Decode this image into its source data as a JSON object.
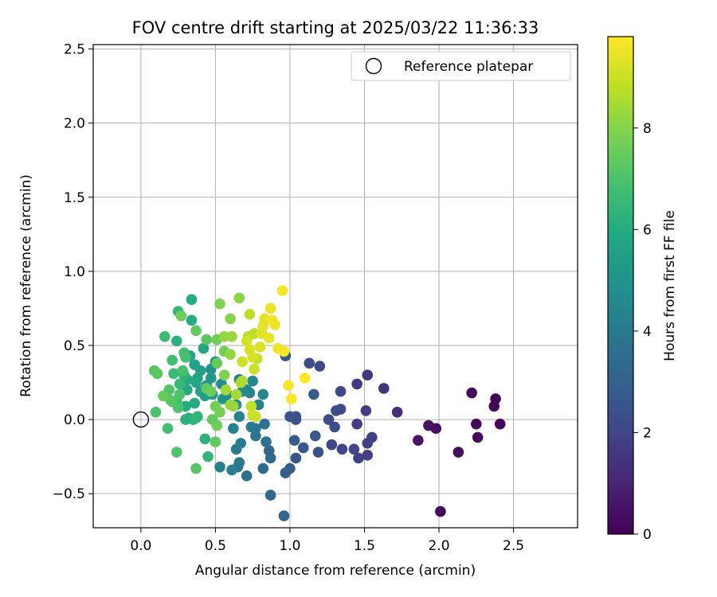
{
  "chart_data": {
    "type": "scatter",
    "title": "FOV centre drift starting at 2025/03/22 11:36:33",
    "xlabel": "Angular distance from reference (arcmin)",
    "ylabel": "Rotation from reference (arcmin)",
    "xlim": [
      -0.32,
      2.93
    ],
    "ylim": [
      -0.73,
      2.53
    ],
    "xticks": [
      0.0,
      0.5,
      1.0,
      1.5,
      2.0,
      2.5
    ],
    "xtick_labels": [
      "0.0",
      "0.5",
      "1.0",
      "1.5",
      "2.0",
      "2.5"
    ],
    "yticks": [
      -0.5,
      0.0,
      0.5,
      1.0,
      1.5,
      2.0,
      2.5
    ],
    "ytick_labels": [
      "−0.5",
      "0.0",
      "0.5",
      "1.0",
      "1.5",
      "2.0",
      "2.5"
    ],
    "grid": true,
    "legend": {
      "placement": "top-right",
      "entries": [
        {
          "label": "Reference platepar",
          "marker": "open-circle"
        }
      ]
    },
    "reference_point": {
      "x": 0.0,
      "y": 0.0
    },
    "colorbar": {
      "label": "Hours from first FF file",
      "colormap": "viridis",
      "min": 0,
      "max": 9.8,
      "ticks": [
        0,
        2,
        4,
        6,
        8
      ],
      "tick_labels": [
        "0",
        "2",
        "4",
        "6",
        "8"
      ]
    },
    "series": [
      {
        "points": [
          {
            "x": 2.01,
            "y": -0.62,
            "c": 0.2
          },
          {
            "x": 2.13,
            "y": -0.22,
            "c": 0.3
          },
          {
            "x": 1.86,
            "y": -0.14,
            "c": 0.5
          },
          {
            "x": 1.93,
            "y": -0.04,
            "c": 0.5
          },
          {
            "x": 1.98,
            "y": -0.06,
            "c": 0.4
          },
          {
            "x": 2.22,
            "y": 0.18,
            "c": 0.3
          },
          {
            "x": 2.25,
            "y": -0.03,
            "c": 0.2
          },
          {
            "x": 2.26,
            "y": -0.12,
            "c": 0.2
          },
          {
            "x": 2.38,
            "y": 0.14,
            "c": 0.1
          },
          {
            "x": 2.37,
            "y": 0.09,
            "c": 0.1
          },
          {
            "x": 2.41,
            "y": -0.03,
            "c": 0.1
          },
          {
            "x": 1.72,
            "y": 0.05,
            "c": 1.3
          },
          {
            "x": 1.63,
            "y": 0.21,
            "c": 1.5
          },
          {
            "x": 1.52,
            "y": 0.3,
            "c": 1.6
          },
          {
            "x": 1.45,
            "y": 0.24,
            "c": 1.6
          },
          {
            "x": 1.51,
            "y": 0.06,
            "c": 1.7
          },
          {
            "x": 1.45,
            "y": -0.03,
            "c": 1.8
          },
          {
            "x": 1.55,
            "y": -0.12,
            "c": 1.8
          },
          {
            "x": 1.52,
            "y": -0.16,
            "c": 1.9
          },
          {
            "x": 1.52,
            "y": -0.24,
            "c": 1.8
          },
          {
            "x": 1.46,
            "y": -0.26,
            "c": 1.9
          },
          {
            "x": 1.43,
            "y": -0.2,
            "c": 2.0
          },
          {
            "x": 1.35,
            "y": -0.2,
            "c": 2.0
          },
          {
            "x": 1.28,
            "y": -0.17,
            "c": 2.1
          },
          {
            "x": 1.34,
            "y": 0.19,
            "c": 2.1
          },
          {
            "x": 1.34,
            "y": 0.07,
            "c": 2.2
          },
          {
            "x": 1.31,
            "y": 0.06,
            "c": 2.2
          },
          {
            "x": 1.26,
            "y": 0.0,
            "c": 2.3
          },
          {
            "x": 1.3,
            "y": -0.05,
            "c": 2.3
          },
          {
            "x": 1.2,
            "y": 0.36,
            "c": 2.2
          },
          {
            "x": 1.13,
            "y": 0.38,
            "c": 2.3
          },
          {
            "x": 1.16,
            "y": 0.17,
            "c": 2.8
          },
          {
            "x": 1.17,
            "y": -0.11,
            "c": 2.7
          },
          {
            "x": 1.19,
            "y": -0.22,
            "c": 2.5
          },
          {
            "x": 1.09,
            "y": -0.19,
            "c": 2.6
          },
          {
            "x": 1.04,
            "y": -0.26,
            "c": 2.6
          },
          {
            "x": 1.04,
            "y": 0.02,
            "c": 2.4
          },
          {
            "x": 1.04,
            "y": 0.0,
            "c": 2.5
          },
          {
            "x": 1.0,
            "y": 0.02,
            "c": 2.6
          },
          {
            "x": 1.03,
            "y": -0.14,
            "c": 2.8
          },
          {
            "x": 1.0,
            "y": -0.33,
            "c": 2.9
          },
          {
            "x": 0.97,
            "y": -0.36,
            "c": 2.9
          },
          {
            "x": 0.97,
            "y": 0.43,
            "c": 2.6
          },
          {
            "x": 0.96,
            "y": -0.65,
            "c": 3.2
          },
          {
            "x": 0.87,
            "y": -0.51,
            "c": 3.3
          },
          {
            "x": 0.87,
            "y": -0.26,
            "c": 3.5
          },
          {
            "x": 0.86,
            "y": -0.21,
            "c": 3.3
          },
          {
            "x": 0.82,
            "y": -0.33,
            "c": 3.4
          },
          {
            "x": 0.84,
            "y": -0.15,
            "c": 3.6
          },
          {
            "x": 0.83,
            "y": -0.03,
            "c": 3.7
          },
          {
            "x": 0.77,
            "y": -0.06,
            "c": 3.8
          },
          {
            "x": 0.77,
            "y": -0.11,
            "c": 3.8
          },
          {
            "x": 0.74,
            "y": -0.05,
            "c": 4.0
          },
          {
            "x": 0.71,
            "y": -0.38,
            "c": 3.7
          },
          {
            "x": 0.66,
            "y": -0.29,
            "c": 3.8
          },
          {
            "x": 0.65,
            "y": -0.32,
            "c": 3.9
          },
          {
            "x": 0.64,
            "y": -0.2,
            "c": 4.0
          },
          {
            "x": 0.67,
            "y": -0.16,
            "c": 4.1
          },
          {
            "x": 0.61,
            "y": -0.34,
            "c": 4.1
          },
          {
            "x": 0.53,
            "y": -0.32,
            "c": 4.2
          },
          {
            "x": 0.62,
            "y": -0.06,
            "c": 4.2
          },
          {
            "x": 0.66,
            "y": 0.02,
            "c": 4.3
          },
          {
            "x": 0.66,
            "y": 0.27,
            "c": 4.2
          },
          {
            "x": 0.73,
            "y": 0.18,
            "c": 4.3
          },
          {
            "x": 0.79,
            "y": 0.1,
            "c": 4.4
          },
          {
            "x": 0.82,
            "y": 0.17,
            "c": 4.5
          },
          {
            "x": 0.75,
            "y": 0.26,
            "c": 4.6
          },
          {
            "x": 0.71,
            "y": 0.2,
            "c": 4.5
          },
          {
            "x": 0.68,
            "y": 0.19,
            "c": 4.6
          },
          {
            "x": 0.64,
            "y": 0.1,
            "c": 4.7
          },
          {
            "x": 0.58,
            "y": 0.17,
            "c": 4.8
          },
          {
            "x": 0.54,
            "y": 0.24,
            "c": 4.8
          },
          {
            "x": 0.55,
            "y": 0.14,
            "c": 4.9
          },
          {
            "x": 0.5,
            "y": 0.39,
            "c": 5.0
          },
          {
            "x": 0.47,
            "y": 0.34,
            "c": 5.0
          },
          {
            "x": 0.47,
            "y": 0.28,
            "c": 5.2
          },
          {
            "x": 0.44,
            "y": 0.23,
            "c": 5.2
          },
          {
            "x": 0.48,
            "y": 0.17,
            "c": 5.3
          },
          {
            "x": 0.43,
            "y": 0.16,
            "c": 5.4
          },
          {
            "x": 0.4,
            "y": 0.19,
            "c": 5.5
          },
          {
            "x": 0.38,
            "y": 0.28,
            "c": 5.6
          },
          {
            "x": 0.4,
            "y": 0.33,
            "c": 5.6
          },
          {
            "x": 0.36,
            "y": 0.37,
            "c": 5.6
          },
          {
            "x": 0.42,
            "y": 0.48,
            "c": 5.7
          },
          {
            "x": 0.33,
            "y": 0.43,
            "c": 5.8
          },
          {
            "x": 0.37,
            "y": 0.25,
            "c": 5.8
          },
          {
            "x": 0.31,
            "y": 0.27,
            "c": 5.9
          },
          {
            "x": 0.31,
            "y": 0.2,
            "c": 5.9
          },
          {
            "x": 0.36,
            "y": 0.11,
            "c": 6.0
          },
          {
            "x": 0.3,
            "y": 0.09,
            "c": 6.0
          },
          {
            "x": 0.32,
            "y": 0.01,
            "c": 6.1
          },
          {
            "x": 0.3,
            "y": 0.0,
            "c": 6.2
          },
          {
            "x": 0.35,
            "y": 0.0,
            "c": 6.2
          },
          {
            "x": 0.37,
            "y": 0.01,
            "c": 6.3
          },
          {
            "x": 0.38,
            "y": 0.02,
            "c": 6.4
          },
          {
            "x": 0.43,
            "y": -0.13,
            "c": 6.2
          },
          {
            "x": 0.45,
            "y": -0.25,
            "c": 6.4
          },
          {
            "x": 0.24,
            "y": 0.53,
            "c": 6.2
          },
          {
            "x": 0.34,
            "y": 0.67,
            "c": 6.0
          },
          {
            "x": 0.34,
            "y": 0.81,
            "c": 6.0
          },
          {
            "x": 0.25,
            "y": 0.73,
            "c": 6.5
          },
          {
            "x": 0.29,
            "y": 0.3,
            "c": 6.3
          },
          {
            "x": 0.26,
            "y": 0.24,
            "c": 6.5
          },
          {
            "x": 0.24,
            "y": 0.13,
            "c": 6.6
          },
          {
            "x": 0.22,
            "y": 0.31,
            "c": 6.6
          },
          {
            "x": 0.21,
            "y": 0.4,
            "c": 6.8
          },
          {
            "x": 0.16,
            "y": 0.56,
            "c": 6.7
          },
          {
            "x": 0.29,
            "y": 0.45,
            "c": 6.8
          },
          {
            "x": 0.3,
            "y": 0.42,
            "c": 6.9
          },
          {
            "x": 0.28,
            "y": 0.33,
            "c": 6.9
          },
          {
            "x": 0.26,
            "y": 0.17,
            "c": 7.0
          },
          {
            "x": 0.25,
            "y": 0.08,
            "c": 7.0
          },
          {
            "x": 0.19,
            "y": 0.2,
            "c": 7.1
          },
          {
            "x": 0.2,
            "y": 0.13,
            "c": 7.1
          },
          {
            "x": 0.21,
            "y": 0.12,
            "c": 7.2
          },
          {
            "x": 0.18,
            "y": -0.06,
            "c": 6.8
          },
          {
            "x": 0.24,
            "y": -0.22,
            "c": 7.1
          },
          {
            "x": 0.37,
            "y": -0.33,
            "c": 7.2
          },
          {
            "x": 0.1,
            "y": 0.05,
            "c": 7.0
          },
          {
            "x": 0.09,
            "y": 0.33,
            "c": 7.2
          },
          {
            "x": 0.11,
            "y": 0.31,
            "c": 7.3
          },
          {
            "x": 0.15,
            "y": 0.16,
            "c": 7.5
          },
          {
            "x": 0.27,
            "y": 0.7,
            "c": 7.6
          },
          {
            "x": 0.37,
            "y": 0.6,
            "c": 7.4
          },
          {
            "x": 0.44,
            "y": 0.54,
            "c": 7.3
          },
          {
            "x": 0.51,
            "y": 0.54,
            "c": 7.6
          },
          {
            "x": 0.56,
            "y": 0.46,
            "c": 7.7
          },
          {
            "x": 0.51,
            "y": 0.38,
            "c": 7.5
          },
          {
            "x": 0.44,
            "y": 0.21,
            "c": 7.4
          },
          {
            "x": 0.47,
            "y": 0.19,
            "c": 7.6
          },
          {
            "x": 0.48,
            "y": 0.0,
            "c": 7.4
          },
          {
            "x": 0.51,
            "y": -0.04,
            "c": 7.6
          },
          {
            "x": 0.5,
            "y": -0.15,
            "c": 7.4
          },
          {
            "x": 0.5,
            "y": 0.09,
            "c": 7.7
          },
          {
            "x": 0.53,
            "y": 0.05,
            "c": 7.8
          },
          {
            "x": 0.56,
            "y": 0.3,
            "c": 7.9
          },
          {
            "x": 0.53,
            "y": 0.78,
            "c": 7.9
          },
          {
            "x": 0.6,
            "y": 0.68,
            "c": 8.0
          },
          {
            "x": 0.66,
            "y": 0.82,
            "c": 8.1
          },
          {
            "x": 0.56,
            "y": 0.56,
            "c": 8.2
          },
          {
            "x": 0.61,
            "y": 0.56,
            "c": 8.3
          },
          {
            "x": 0.6,
            "y": 0.44,
            "c": 8.2
          },
          {
            "x": 0.6,
            "y": 0.1,
            "c": 8.2
          },
          {
            "x": 0.62,
            "y": 0.09,
            "c": 8.3
          },
          {
            "x": 0.57,
            "y": 0.2,
            "c": 8.4
          },
          {
            "x": 0.64,
            "y": 0.17,
            "c": 8.5
          },
          {
            "x": 0.67,
            "y": 0.25,
            "c": 8.6
          },
          {
            "x": 0.68,
            "y": 0.26,
            "c": 8.6
          },
          {
            "x": 0.72,
            "y": 0.56,
            "c": 8.7
          },
          {
            "x": 0.73,
            "y": 0.71,
            "c": 8.8
          },
          {
            "x": 0.76,
            "y": 0.58,
            "c": 8.8
          },
          {
            "x": 0.78,
            "y": 0.41,
            "c": 8.9
          },
          {
            "x": 0.76,
            "y": 0.34,
            "c": 9.0
          },
          {
            "x": 0.74,
            "y": 0.09,
            "c": 8.9
          },
          {
            "x": 0.75,
            "y": 0.03,
            "c": 9.0
          },
          {
            "x": 0.77,
            "y": 0.02,
            "c": 9.0
          },
          {
            "x": 0.68,
            "y": 0.39,
            "c": 9.1
          },
          {
            "x": 0.71,
            "y": 0.53,
            "c": 9.1
          },
          {
            "x": 0.73,
            "y": 0.47,
            "c": 9.2
          },
          {
            "x": 0.75,
            "y": 0.42,
            "c": 9.2
          },
          {
            "x": 0.8,
            "y": 0.49,
            "c": 9.3
          },
          {
            "x": 0.81,
            "y": 0.58,
            "c": 9.3
          },
          {
            "x": 0.82,
            "y": 0.63,
            "c": 9.4
          },
          {
            "x": 0.83,
            "y": 0.68,
            "c": 9.4
          },
          {
            "x": 0.86,
            "y": 0.55,
            "c": 9.5
          },
          {
            "x": 0.87,
            "y": 0.75,
            "c": 9.5
          },
          {
            "x": 0.88,
            "y": 0.67,
            "c": 9.6
          },
          {
            "x": 0.9,
            "y": 0.64,
            "c": 9.6
          },
          {
            "x": 0.92,
            "y": 0.48,
            "c": 9.6
          },
          {
            "x": 0.96,
            "y": 0.46,
            "c": 9.7
          },
          {
            "x": 0.95,
            "y": 0.87,
            "c": 9.7
          },
          {
            "x": 0.99,
            "y": 0.23,
            "c": 9.7
          },
          {
            "x": 1.01,
            "y": 0.14,
            "c": 9.8
          },
          {
            "x": 1.1,
            "y": 0.28,
            "c": 9.8
          }
        ]
      }
    ]
  }
}
